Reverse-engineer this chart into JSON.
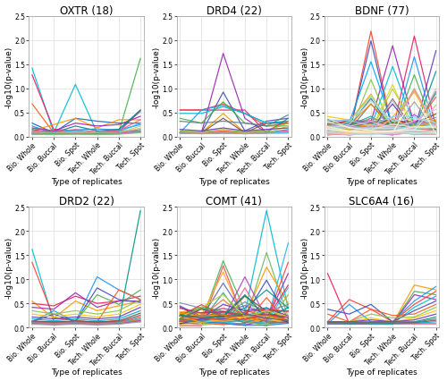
{
  "panels": [
    {
      "title": "OXTR (18)",
      "n_probes": 18
    },
    {
      "title": "DRD4 (22)",
      "n_probes": 22
    },
    {
      "title": "BDNF (77)",
      "n_probes": 77
    },
    {
      "title": "DRD2 (22)",
      "n_probes": 22
    },
    {
      "title": "COMT (41)",
      "n_probes": 41
    },
    {
      "title": "SLC6A4 (16)",
      "n_probes": 16
    }
  ],
  "x_labels": [
    "Bio. Whole",
    "Bio. Buccal",
    "Bio. Spot",
    "Tech. Whole",
    "Tech. Buccal",
    "Tech. Spot"
  ],
  "xlabel": "Type of replicates",
  "ylabel": "-log10(p-value)",
  "ylim": [
    0,
    2.5
  ],
  "yticks": [
    0.0,
    0.5,
    1.0,
    1.5,
    2.0,
    2.5
  ],
  "background_color": "#ffffff",
  "panel_bg": "#ffffff",
  "grid_color": "#dddddd",
  "title_fontsize": 8.5,
  "axis_fontsize": 6.5,
  "tick_fontsize": 5.5,
  "linewidth": 0.9,
  "figsize": [
    5.0,
    4.27
  ],
  "dpi": 100
}
